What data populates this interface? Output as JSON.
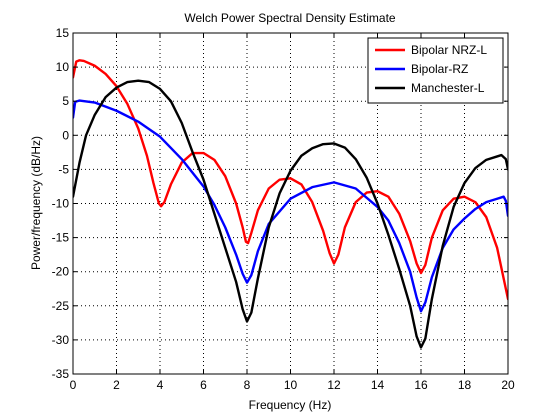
{
  "chart_data": {
    "type": "line",
    "title": "Welch Power Spectral Density Estimate",
    "xlabel": "Frequency (Hz)",
    "ylabel": "Power/frequency (dB/Hz)",
    "xlim": [
      0,
      20
    ],
    "ylim": [
      -35,
      15
    ],
    "xticks": [
      0,
      2,
      4,
      6,
      8,
      10,
      12,
      14,
      16,
      18,
      20
    ],
    "yticks": [
      -35,
      -30,
      -25,
      -20,
      -15,
      -10,
      -5,
      0,
      5,
      10,
      15
    ],
    "grid": true,
    "legend_position": "top-right",
    "series": [
      {
        "name": "Bipolar NRZ-L",
        "color": "#ff0000",
        "points": [
          [
            0,
            8.5
          ],
          [
            0.15,
            10.8
          ],
          [
            0.3,
            11.0
          ],
          [
            0.5,
            10.9
          ],
          [
            1.0,
            10.2
          ],
          [
            1.5,
            9.0
          ],
          [
            2.0,
            7.2
          ],
          [
            2.5,
            4.6
          ],
          [
            3.0,
            1.0
          ],
          [
            3.4,
            -3.0
          ],
          [
            3.7,
            -7.0
          ],
          [
            3.95,
            -10.0
          ],
          [
            4.05,
            -10.4
          ],
          [
            4.2,
            -9.8
          ],
          [
            4.5,
            -7.2
          ],
          [
            5.0,
            -4.0
          ],
          [
            5.5,
            -2.6
          ],
          [
            6.0,
            -2.6
          ],
          [
            6.5,
            -3.6
          ],
          [
            7.0,
            -6.0
          ],
          [
            7.5,
            -10.0
          ],
          [
            7.8,
            -13.5
          ],
          [
            7.95,
            -15.6
          ],
          [
            8.05,
            -15.8
          ],
          [
            8.2,
            -14.3
          ],
          [
            8.5,
            -11.0
          ],
          [
            9.0,
            -7.8
          ],
          [
            9.5,
            -6.5
          ],
          [
            10.0,
            -6.3
          ],
          [
            10.5,
            -7.2
          ],
          [
            11.0,
            -9.8
          ],
          [
            11.5,
            -14.0
          ],
          [
            11.8,
            -17.3
          ],
          [
            12.0,
            -18.8
          ],
          [
            12.2,
            -17.5
          ],
          [
            12.5,
            -13.5
          ],
          [
            13.0,
            -9.8
          ],
          [
            13.5,
            -8.4
          ],
          [
            14.0,
            -8.2
          ],
          [
            14.5,
            -9.0
          ],
          [
            15.0,
            -11.5
          ],
          [
            15.5,
            -15.5
          ],
          [
            15.8,
            -18.8
          ],
          [
            16.0,
            -20.2
          ],
          [
            16.2,
            -19.0
          ],
          [
            16.5,
            -15.0
          ],
          [
            17.0,
            -11.0
          ],
          [
            17.5,
            -9.3
          ],
          [
            18.0,
            -9.0
          ],
          [
            18.5,
            -9.8
          ],
          [
            19.0,
            -12.0
          ],
          [
            19.5,
            -16.5
          ],
          [
            19.8,
            -21.0
          ],
          [
            20.0,
            -24.0
          ]
        ]
      },
      {
        "name": "Bipolar-RZ",
        "color": "#0000ff",
        "points": [
          [
            0,
            2.6
          ],
          [
            0.1,
            4.9
          ],
          [
            0.3,
            5.1
          ],
          [
            1.0,
            4.8
          ],
          [
            2.0,
            3.6
          ],
          [
            3.0,
            2.0
          ],
          [
            4.0,
            -0.2
          ],
          [
            5.0,
            -3.5
          ],
          [
            6.0,
            -7.5
          ],
          [
            6.5,
            -10.2
          ],
          [
            7.0,
            -13.5
          ],
          [
            7.5,
            -17.5
          ],
          [
            7.8,
            -20.3
          ],
          [
            8.0,
            -21.6
          ],
          [
            8.2,
            -20.5
          ],
          [
            8.5,
            -17.0
          ],
          [
            9.0,
            -13.0
          ],
          [
            10.0,
            -9.3
          ],
          [
            11.0,
            -7.6
          ],
          [
            12.0,
            -6.9
          ],
          [
            13.0,
            -7.8
          ],
          [
            14.0,
            -10.5
          ],
          [
            14.5,
            -12.5
          ],
          [
            15.0,
            -15.8
          ],
          [
            15.5,
            -20.0
          ],
          [
            15.8,
            -23.8
          ],
          [
            16.0,
            -25.8
          ],
          [
            16.2,
            -24.5
          ],
          [
            16.5,
            -20.8
          ],
          [
            17.0,
            -16.5
          ],
          [
            17.5,
            -13.8
          ],
          [
            18.0,
            -12.2
          ],
          [
            18.5,
            -10.8
          ],
          [
            19.0,
            -9.8
          ],
          [
            19.5,
            -9.3
          ],
          [
            19.8,
            -9.0
          ],
          [
            19.9,
            -9.6
          ],
          [
            20.0,
            -11.8
          ]
        ]
      },
      {
        "name": "Manchester-L",
        "color": "#000000",
        "points": [
          [
            0,
            -9.0
          ],
          [
            0.3,
            -4.0
          ],
          [
            0.6,
            0.0
          ],
          [
            1.0,
            3.0
          ],
          [
            1.5,
            5.6
          ],
          [
            2.0,
            7.0
          ],
          [
            2.5,
            7.8
          ],
          [
            3.0,
            8.0
          ],
          [
            3.5,
            7.8
          ],
          [
            4.0,
            6.8
          ],
          [
            4.5,
            5.0
          ],
          [
            5.0,
            1.8
          ],
          [
            5.5,
            -2.5
          ],
          [
            6.0,
            -6.5
          ],
          [
            6.5,
            -11.5
          ],
          [
            7.0,
            -16.5
          ],
          [
            7.5,
            -21.5
          ],
          [
            7.8,
            -25.5
          ],
          [
            8.0,
            -27.3
          ],
          [
            8.2,
            -26.0
          ],
          [
            8.5,
            -21.0
          ],
          [
            9.0,
            -13.5
          ],
          [
            9.5,
            -8.5
          ],
          [
            10.0,
            -5.2
          ],
          [
            10.5,
            -3.0
          ],
          [
            11.0,
            -1.9
          ],
          [
            11.5,
            -1.3
          ],
          [
            12.0,
            -1.2
          ],
          [
            12.5,
            -1.8
          ],
          [
            13.0,
            -3.5
          ],
          [
            13.5,
            -6.2
          ],
          [
            14.0,
            -10.0
          ],
          [
            14.5,
            -14.6
          ],
          [
            15.0,
            -19.6
          ],
          [
            15.5,
            -25.0
          ],
          [
            15.8,
            -29.5
          ],
          [
            16.0,
            -31.1
          ],
          [
            16.2,
            -29.8
          ],
          [
            16.5,
            -24.0
          ],
          [
            17.0,
            -16.2
          ],
          [
            17.5,
            -10.5
          ],
          [
            18.0,
            -7.0
          ],
          [
            18.5,
            -4.8
          ],
          [
            19.0,
            -3.6
          ],
          [
            19.5,
            -3.1
          ],
          [
            19.7,
            -2.9
          ],
          [
            19.9,
            -3.5
          ],
          [
            20.0,
            -5.0
          ]
        ]
      }
    ]
  }
}
